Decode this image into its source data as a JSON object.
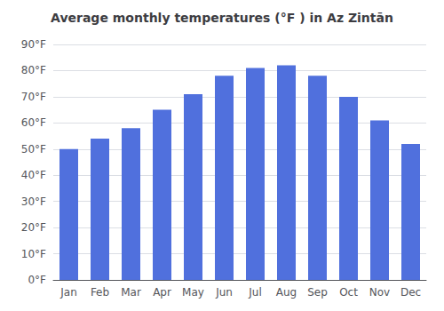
{
  "chart_data": {
    "type": "bar",
    "title": "Average monthly temperatures (°F ) in Az Zintān",
    "categories": [
      "Jan",
      "Feb",
      "Mar",
      "Apr",
      "May",
      "Jun",
      "Jul",
      "Aug",
      "Sep",
      "Oct",
      "Nov",
      "Dec"
    ],
    "values": [
      50,
      54,
      58,
      65,
      71,
      78,
      81,
      82,
      78,
      70,
      61,
      52
    ],
    "ylim": [
      0,
      90
    ],
    "yticks": [
      {
        "value": 0,
        "label": "0°F"
      },
      {
        "value": 10,
        "label": "10°F"
      },
      {
        "value": 20,
        "label": "20°F"
      },
      {
        "value": 30,
        "label": "30°F"
      },
      {
        "value": 40,
        "label": "40°F"
      },
      {
        "value": 50,
        "label": "50°F"
      },
      {
        "value": 60,
        "label": "60°F"
      },
      {
        "value": 70,
        "label": "70°F"
      },
      {
        "value": 80,
        "label": "80°F"
      },
      {
        "value": 90,
        "label": "90°F"
      }
    ],
    "grid": true
  }
}
